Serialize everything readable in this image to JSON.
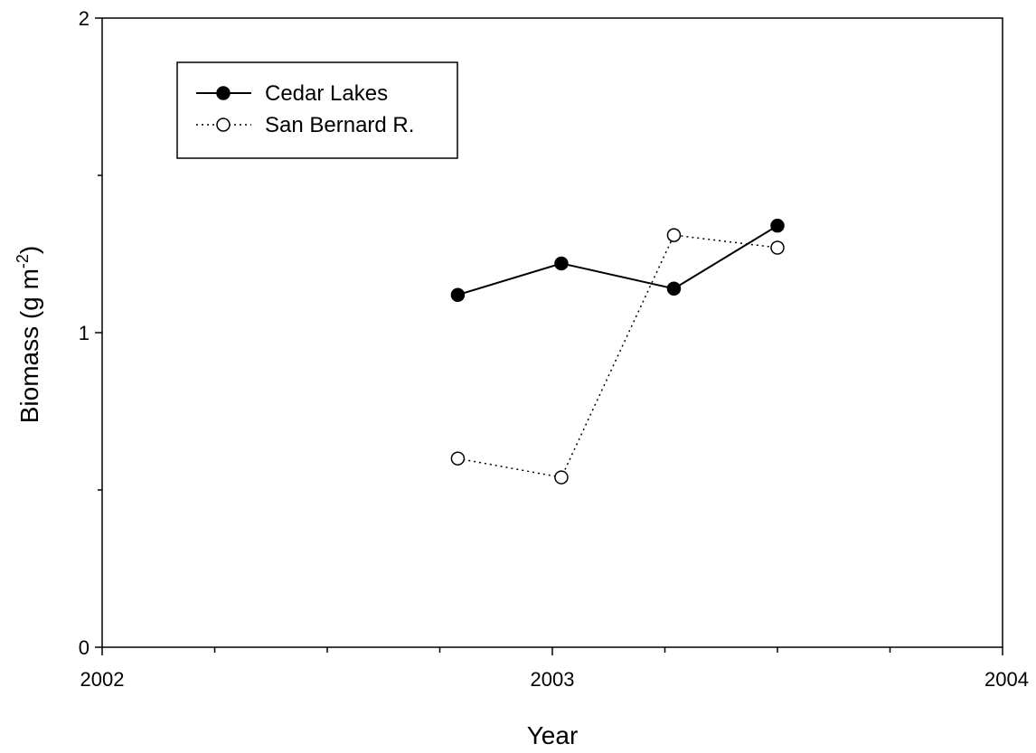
{
  "chart_data": {
    "type": "line",
    "title": "",
    "xlabel": "Year",
    "ylabel_main": "Biomass (g m",
    "ylabel_sup": "-2",
    "ylabel_close": ")",
    "xlim": [
      2002,
      2004
    ],
    "ylim": [
      0,
      2
    ],
    "x_ticks": [
      2002,
      2003,
      2004
    ],
    "x_minor_ticks": [
      2002.25,
      2002.5,
      2002.75,
      2003.25,
      2003.5,
      2003.75
    ],
    "y_ticks": [
      0,
      1,
      2
    ],
    "y_minor_ticks": [
      0.5,
      1.5
    ],
    "grid": false,
    "legend_position": "top-left",
    "series": [
      {
        "name": "Cedar Lakes",
        "marker": "filled-circle",
        "line": "solid",
        "x": [
          2002.79,
          2003.02,
          2003.27,
          2003.5
        ],
        "y": [
          1.12,
          1.22,
          1.14,
          1.34
        ]
      },
      {
        "name": "San Bernard R.",
        "marker": "open-circle",
        "line": "dotted",
        "x": [
          2002.79,
          2003.02,
          2003.27,
          2003.5
        ],
        "y": [
          0.6,
          0.54,
          1.31,
          1.27
        ]
      }
    ]
  }
}
